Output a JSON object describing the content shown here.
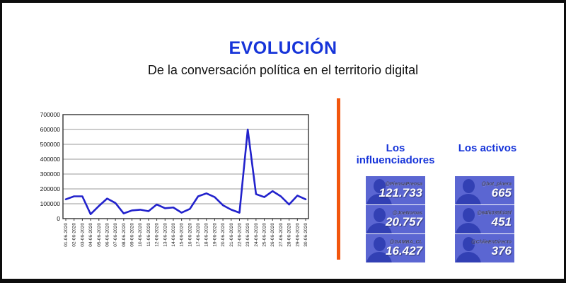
{
  "header": {
    "title": "EVOLUCIÓN",
    "subtitle": "De la conversación política en el territorio digital"
  },
  "colors": {
    "title_blue": "#1634d9",
    "line_blue": "#2222cc",
    "divider_orange": "#f2560d",
    "card_bg": "#5b66d2",
    "card_silhouette": "#3240b4",
    "grid_gray": "#9a9a9a",
    "axis_black": "#333333"
  },
  "chart_data": {
    "type": "line",
    "x": [
      "01-06-2020",
      "02-06-2020",
      "03-06-2020",
      "04-06-2020",
      "05-06-2020",
      "06-06-2020",
      "07-06-2020",
      "08-06-2020",
      "09-06-2020",
      "10-06-2020",
      "11-06-2020",
      "12-06-2020",
      "13-06-2020",
      "14-06-2020",
      "15-06-2020",
      "16-06-2020",
      "17-06-2020",
      "18-06-2020",
      "19-06-2020",
      "20-06-2020",
      "21-06-2020",
      "22-06-2020",
      "23-06-2020",
      "24-06-2020",
      "25-06-2020",
      "26-06-2020",
      "27-06-2020",
      "28-06-2020",
      "29-06-2020",
      "30-06-2020"
    ],
    "values": [
      130000,
      150000,
      150000,
      30000,
      85000,
      135000,
      105000,
      35000,
      55000,
      60000,
      50000,
      95000,
      70000,
      75000,
      40000,
      65000,
      150000,
      170000,
      145000,
      90000,
      60000,
      40000,
      600000,
      165000,
      145000,
      185000,
      150000,
      95000,
      155000,
      130000
    ],
    "title": "",
    "xlabel": "",
    "ylabel": "",
    "ylim": [
      0,
      700000
    ],
    "yticks": [
      0,
      100000,
      200000,
      300000,
      400000,
      500000,
      600000,
      700000
    ],
    "grid": true,
    "legend": false
  },
  "panels": {
    "influencers": {
      "title": "Los influenciadores",
      "items": [
        {
          "handle": "@PiensaPrensa",
          "value": "121.733"
        },
        {
          "handle": "@JoeNomas",
          "value": "20.757"
        },
        {
          "handle": "@GAMBA_CL",
          "value": "16.427"
        }
      ]
    },
    "actives": {
      "title": "Los activos",
      "items": [
        {
          "handle": "@bot_pinera",
          "value": "665"
        },
        {
          "handle": "@64lk035fd45f",
          "value": "451"
        },
        {
          "handle": "@ChileEnDirecto",
          "value": "376"
        }
      ]
    }
  }
}
